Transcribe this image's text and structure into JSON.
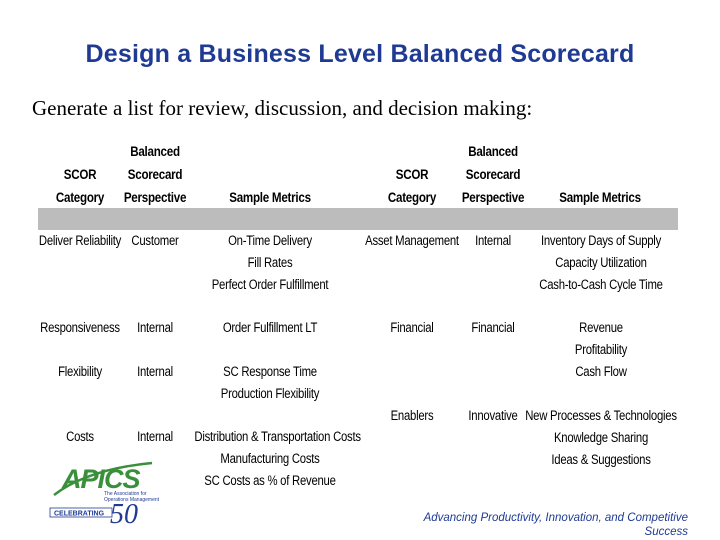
{
  "title": "Design a Business Level Balanced Scorecard",
  "subtitle": "Generate a list for review, discussion, and decision making:",
  "table": {
    "headers_left": {
      "category": [
        "SCOR",
        "Category"
      ],
      "perspective": [
        "Balanced",
        "Scorecard",
        "Perspective"
      ],
      "metrics": [
        "Sample Metrics"
      ]
    },
    "headers_right": {
      "category": [
        "SCOR",
        "Category"
      ],
      "perspective": [
        "Balanced",
        "Scorecard",
        "Perspective"
      ],
      "metrics": [
        "Sample Metrics"
      ]
    },
    "left_rows": [
      {
        "category": "Deliver Reliability",
        "perspective": "Customer",
        "metrics": [
          "On-Time Delivery",
          "Fill Rates",
          "Perfect Order Fulfillment"
        ]
      },
      {
        "category": "Responsiveness",
        "perspective": "Internal",
        "metrics": [
          "Order Fulfillment LT"
        ]
      },
      {
        "category": "Flexibility",
        "perspective": "Internal",
        "metrics": [
          "SC Response Time",
          "Production Flexibility"
        ]
      },
      {
        "category": "Costs",
        "perspective": "Internal",
        "metrics": [
          "Distribution & Transportation Costs",
          "Manufacturing Costs",
          "SC Costs as % of Revenue"
        ]
      }
    ],
    "right_rows": [
      {
        "category": "Asset Management",
        "perspective": "Internal",
        "metrics": [
          "Inventory Days of Supply",
          "Capacity Utilization",
          "Cash-to-Cash Cycle Time"
        ]
      },
      {
        "category": "Financial",
        "perspective": "Financial",
        "metrics": [
          "Revenue",
          "Profitability",
          "Cash Flow"
        ]
      },
      {
        "category": "Enablers",
        "perspective": "Innovative",
        "metrics": [
          "New Processes & Technologies",
          "Knowledge Sharing",
          "Ideas & Suggestions"
        ]
      }
    ]
  },
  "logo": {
    "name": "APICS",
    "tagline": [
      "The Association for",
      "Operations Management"
    ],
    "celebrating": "CELEBRATING",
    "years": "50"
  },
  "footer": [
    "Advancing Productivity, Innovation, and Competitive",
    "Success"
  ],
  "colors": {
    "title": "#1f3a93",
    "band": "#bcbcbc",
    "logo_green": "#3a8f3a",
    "logo_blue": "#1f3a93"
  }
}
